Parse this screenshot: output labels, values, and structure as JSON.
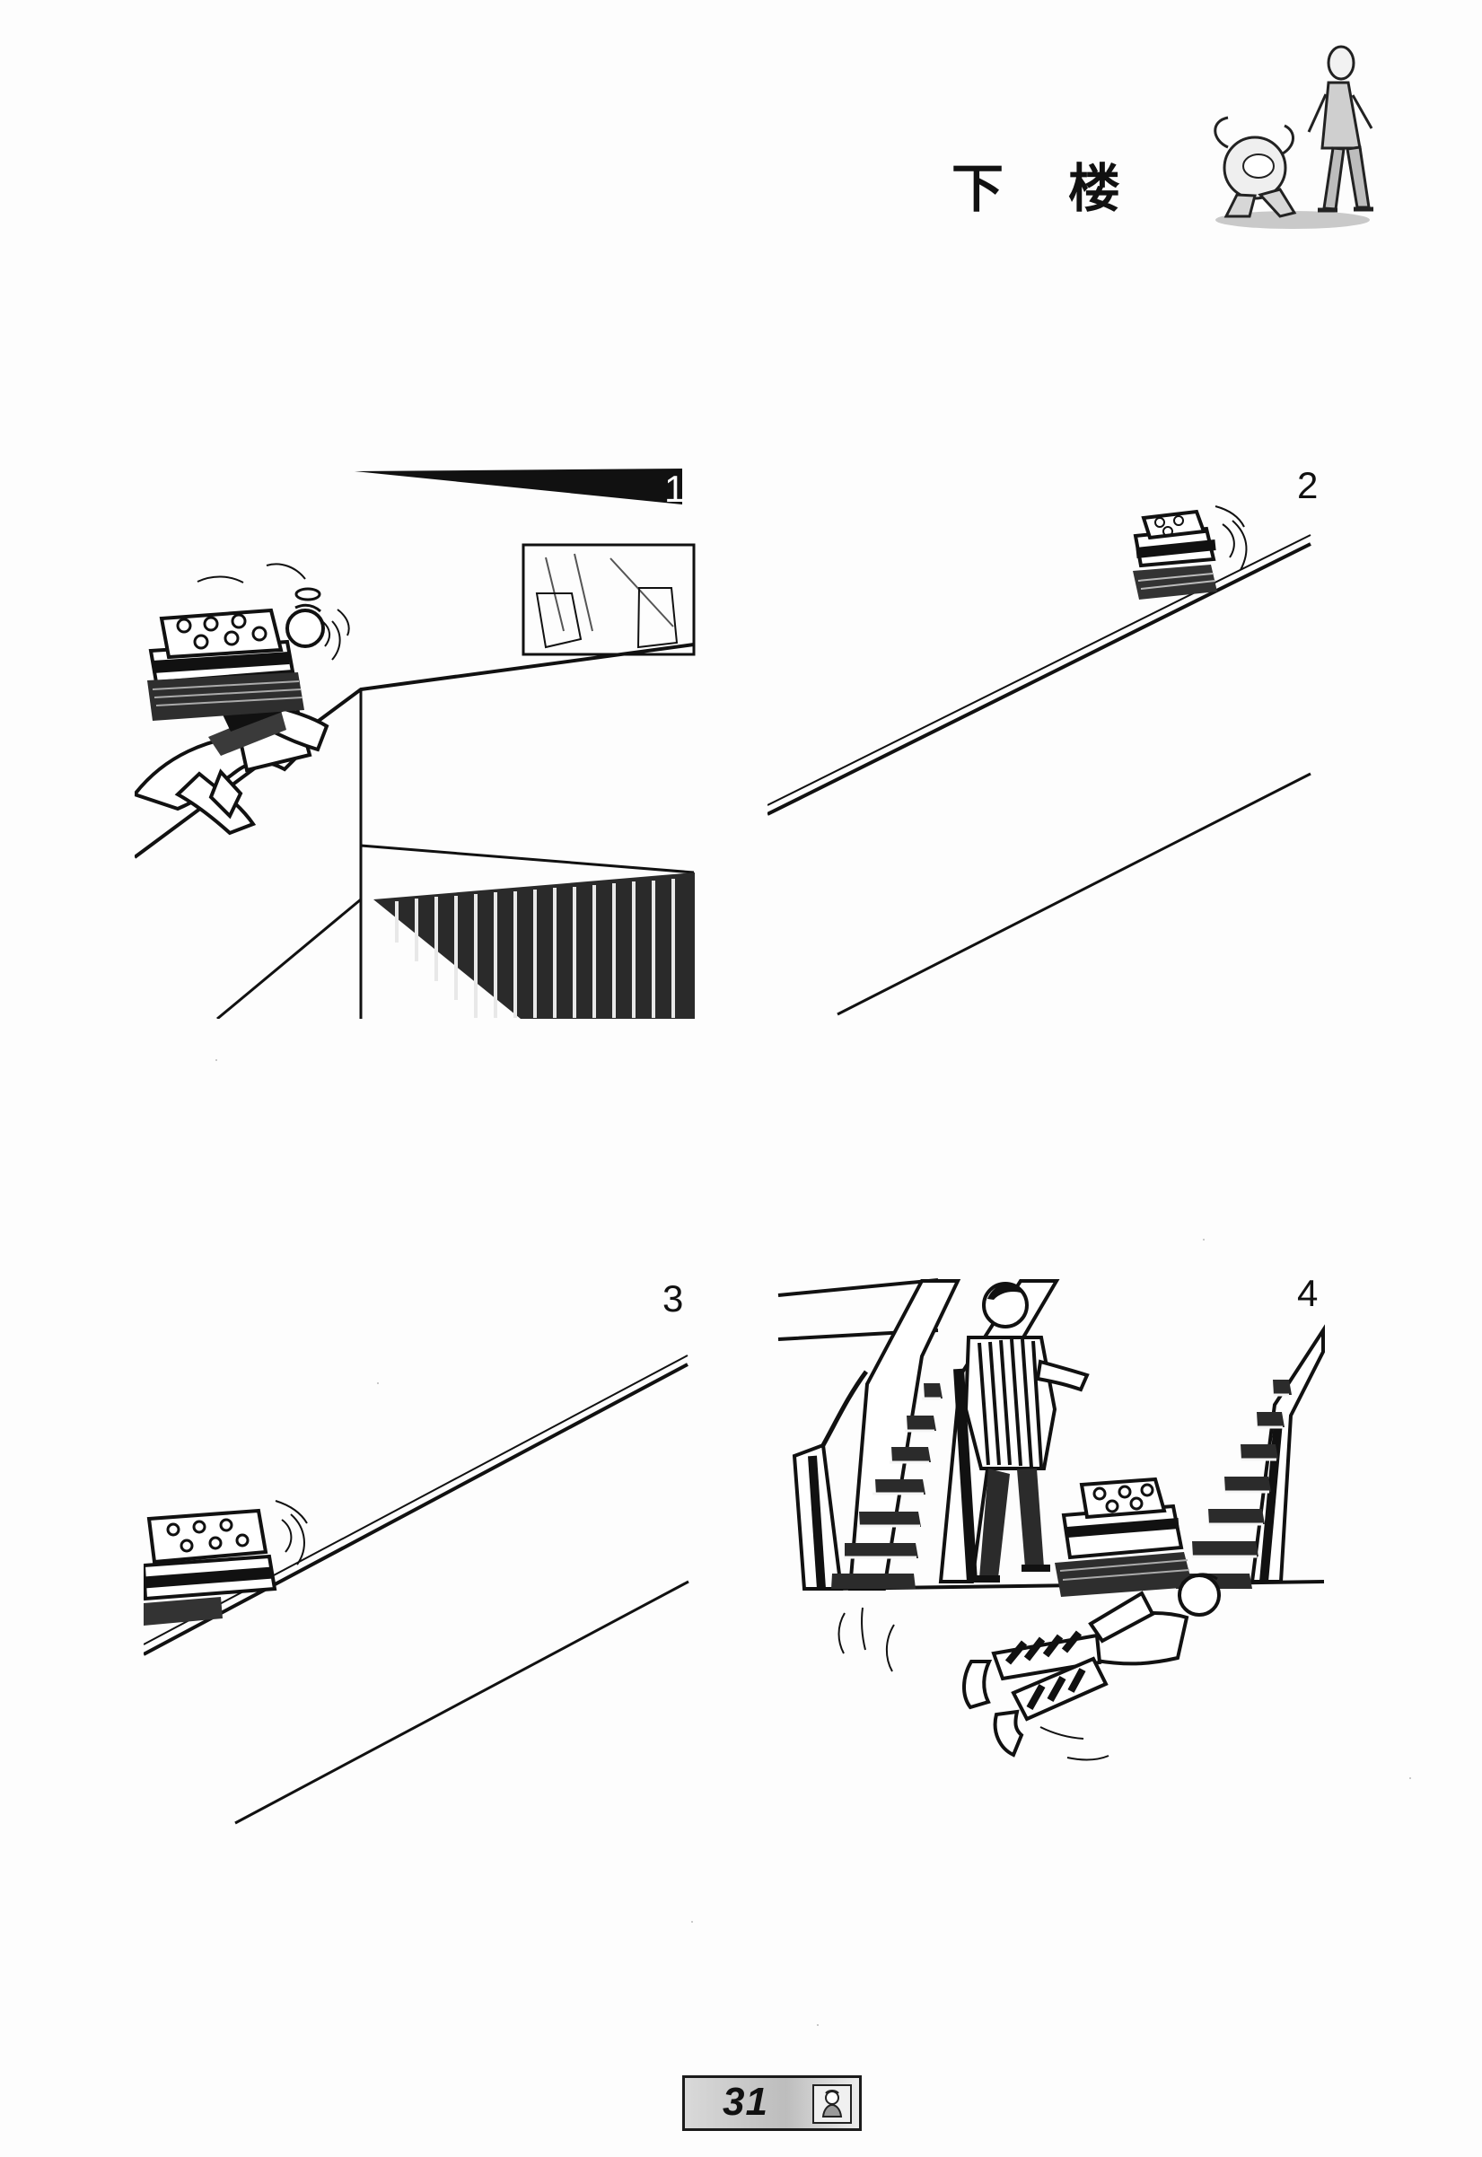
{
  "title": {
    "left_char": "下",
    "right_char": "楼"
  },
  "panels": [
    {
      "number": "1"
    },
    {
      "number": "2"
    },
    {
      "number": "3"
    },
    {
      "number": "4"
    }
  ],
  "footer": {
    "page_number": "31"
  },
  "icons": {
    "title_mascot": "mascot-icon",
    "footer_portrait": "portrait-icon"
  },
  "colors": {
    "ink": "#111111",
    "paper": "#fdfdfd",
    "badge_gray": "#bdbdbd"
  }
}
